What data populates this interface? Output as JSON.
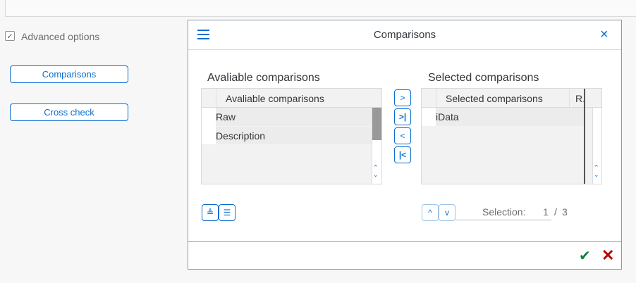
{
  "left_panel": {
    "advanced_options": "Advanced options",
    "advanced_checked": true,
    "comparisons_button": "Comparisons",
    "cross_check_button": "Cross check"
  },
  "dialog": {
    "title": "Comparisons",
    "available": {
      "title": "Avaliable comparisons",
      "column": "Avaliable comparisons",
      "rows": [
        "Raw",
        "Description"
      ]
    },
    "selected": {
      "title": "Selected comparisons",
      "column": "Selected comparisons",
      "column2": "R.",
      "rows": [
        "iData"
      ]
    },
    "selection_label": "Selection:",
    "selection_current": "1",
    "selection_sep": "/",
    "selection_total": "3"
  },
  "colors": {
    "accent": "#0a6ed1",
    "ok": "#107e3e",
    "cancel": "#bb0000"
  }
}
